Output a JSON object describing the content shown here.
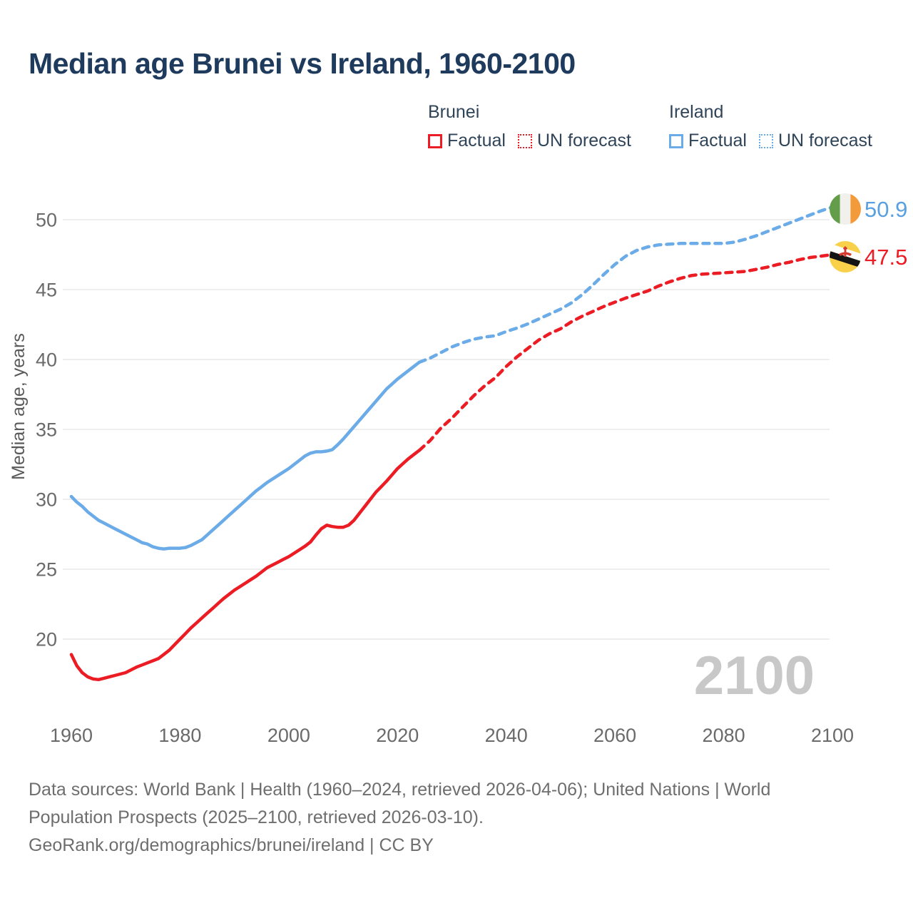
{
  "title": "Median age Brunei vs Ireland, 1960-2100",
  "legend": {
    "brunei_name": "Brunei",
    "ireland_name": "Ireland",
    "factual_label": "Factual",
    "forecast_label": "UN forecast"
  },
  "watermark": "2100",
  "footer": {
    "sources_line": "Data sources: World Bank | Health (1960–2024, retrieved 2026-04-06); United Nations | World Population Prospects (2025–2100, retrieved 2026-03-10).",
    "attribution_line": "GeoRank.org/demographics/brunei/ireland | CC BY"
  },
  "colors": {
    "brunei": "#ec1c24",
    "ireland_line": "#6aabe8",
    "ireland_text": "#59a0e0",
    "title_navy": "#1e3a5c",
    "grid": "#e9e9e9",
    "tick_text": "#6a6a6a",
    "watermark": "#c8c8c8",
    "ireland_flag_green": "#639d49",
    "ireland_flag_orange": "#f39b3a",
    "brunei_flag_yellow": "#f8d04a",
    "brunei_flag_red": "#d6392e"
  },
  "chart_data": {
    "type": "line",
    "title": "Median age Brunei vs Ireland, 1960-2100",
    "xlabel": "",
    "ylabel": "Median age, years",
    "x_ticks": [
      1960,
      1980,
      2000,
      2020,
      2040,
      2060,
      2080,
      2100
    ],
    "y_ticks": [
      20,
      25,
      30,
      35,
      40,
      45,
      50
    ],
    "xlim": [
      1960,
      2100
    ],
    "ylim": [
      16.5,
      52
    ],
    "grid": "horizontal-only",
    "legend_position": "top-right",
    "series": [
      {
        "name": "Ireland Factual",
        "style": "solid",
        "color": "#6aabe8",
        "points": [
          [
            1960,
            30.2
          ],
          [
            1961,
            29.8
          ],
          [
            1962,
            29.5
          ],
          [
            1963,
            29.1
          ],
          [
            1964,
            28.8
          ],
          [
            1965,
            28.5
          ],
          [
            1966,
            28.3
          ],
          [
            1967,
            28.1
          ],
          [
            1968,
            27.9
          ],
          [
            1969,
            27.7
          ],
          [
            1970,
            27.5
          ],
          [
            1971,
            27.3
          ],
          [
            1972,
            27.1
          ],
          [
            1973,
            26.9
          ],
          [
            1974,
            26.8
          ],
          [
            1975,
            26.6
          ],
          [
            1976,
            26.5
          ],
          [
            1977,
            26.45
          ],
          [
            1978,
            26.5
          ],
          [
            1979,
            26.5
          ],
          [
            1980,
            26.5
          ],
          [
            1981,
            26.55
          ],
          [
            1982,
            26.7
          ],
          [
            1983,
            26.9
          ],
          [
            1984,
            27.1
          ],
          [
            1985,
            27.45
          ],
          [
            1986,
            27.8
          ],
          [
            1987,
            28.15
          ],
          [
            1988,
            28.5
          ],
          [
            1989,
            28.85
          ],
          [
            1990,
            29.2
          ],
          [
            1991,
            29.55
          ],
          [
            1992,
            29.9
          ],
          [
            1993,
            30.25
          ],
          [
            1994,
            30.6
          ],
          [
            1995,
            30.9
          ],
          [
            1996,
            31.2
          ],
          [
            1997,
            31.45
          ],
          [
            1998,
            31.7
          ],
          [
            1999,
            31.95
          ],
          [
            2000,
            32.2
          ],
          [
            2001,
            32.5
          ],
          [
            2002,
            32.8
          ],
          [
            2003,
            33.1
          ],
          [
            2004,
            33.3
          ],
          [
            2005,
            33.4
          ],
          [
            2006,
            33.4
          ],
          [
            2007,
            33.45
          ],
          [
            2008,
            33.55
          ],
          [
            2009,
            33.9
          ],
          [
            2010,
            34.3
          ],
          [
            2011,
            34.75
          ],
          [
            2012,
            35.2
          ],
          [
            2013,
            35.65
          ],
          [
            2014,
            36.1
          ],
          [
            2015,
            36.55
          ],
          [
            2016,
            37.0
          ],
          [
            2017,
            37.45
          ],
          [
            2018,
            37.9
          ],
          [
            2019,
            38.25
          ],
          [
            2020,
            38.6
          ],
          [
            2021,
            38.9
          ],
          [
            2022,
            39.2
          ],
          [
            2023,
            39.5
          ],
          [
            2024,
            39.8
          ]
        ]
      },
      {
        "name": "Ireland UN forecast",
        "style": "dashed",
        "color": "#6aabe8",
        "points": [
          [
            2024,
            39.8
          ],
          [
            2026,
            40.1
          ],
          [
            2028,
            40.5
          ],
          [
            2030,
            40.9
          ],
          [
            2032,
            41.2
          ],
          [
            2034,
            41.45
          ],
          [
            2036,
            41.6
          ],
          [
            2038,
            41.7
          ],
          [
            2040,
            42.0
          ],
          [
            2042,
            42.25
          ],
          [
            2044,
            42.55
          ],
          [
            2046,
            42.9
          ],
          [
            2048,
            43.25
          ],
          [
            2050,
            43.6
          ],
          [
            2052,
            44.05
          ],
          [
            2054,
            44.65
          ],
          [
            2056,
            45.35
          ],
          [
            2058,
            46.1
          ],
          [
            2060,
            46.8
          ],
          [
            2062,
            47.4
          ],
          [
            2064,
            47.8
          ],
          [
            2066,
            48.05
          ],
          [
            2068,
            48.2
          ],
          [
            2070,
            48.25
          ],
          [
            2072,
            48.3
          ],
          [
            2074,
            48.3
          ],
          [
            2076,
            48.3
          ],
          [
            2078,
            48.3
          ],
          [
            2080,
            48.3
          ],
          [
            2082,
            48.4
          ],
          [
            2084,
            48.6
          ],
          [
            2086,
            48.85
          ],
          [
            2088,
            49.15
          ],
          [
            2090,
            49.45
          ],
          [
            2092,
            49.75
          ],
          [
            2094,
            50.05
          ],
          [
            2096,
            50.35
          ],
          [
            2098,
            50.65
          ],
          [
            2100,
            50.9
          ]
        ]
      },
      {
        "name": "Brunei Factual",
        "style": "solid",
        "color": "#ec1c24",
        "points": [
          [
            1960,
            18.9
          ],
          [
            1961,
            18.1
          ],
          [
            1962,
            17.6
          ],
          [
            1963,
            17.3
          ],
          [
            1964,
            17.15
          ],
          [
            1965,
            17.1
          ],
          [
            1966,
            17.2
          ],
          [
            1967,
            17.3
          ],
          [
            1968,
            17.4
          ],
          [
            1969,
            17.5
          ],
          [
            1970,
            17.6
          ],
          [
            1971,
            17.8
          ],
          [
            1972,
            18.0
          ],
          [
            1973,
            18.15
          ],
          [
            1974,
            18.3
          ],
          [
            1975,
            18.45
          ],
          [
            1976,
            18.6
          ],
          [
            1977,
            18.9
          ],
          [
            1978,
            19.2
          ],
          [
            1979,
            19.6
          ],
          [
            1980,
            20.0
          ],
          [
            1981,
            20.4
          ],
          [
            1982,
            20.8
          ],
          [
            1983,
            21.15
          ],
          [
            1984,
            21.5
          ],
          [
            1985,
            21.85
          ],
          [
            1986,
            22.2
          ],
          [
            1987,
            22.55
          ],
          [
            1988,
            22.9
          ],
          [
            1989,
            23.2
          ],
          [
            1990,
            23.5
          ],
          [
            1991,
            23.75
          ],
          [
            1992,
            24.0
          ],
          [
            1993,
            24.25
          ],
          [
            1994,
            24.5
          ],
          [
            1995,
            24.8
          ],
          [
            1996,
            25.1
          ],
          [
            1997,
            25.3
          ],
          [
            1998,
            25.5
          ],
          [
            1999,
            25.7
          ],
          [
            2000,
            25.9
          ],
          [
            2001,
            26.15
          ],
          [
            2002,
            26.4
          ],
          [
            2003,
            26.65
          ],
          [
            2004,
            26.95
          ],
          [
            2005,
            27.45
          ],
          [
            2006,
            27.9
          ],
          [
            2007,
            28.15
          ],
          [
            2008,
            28.05
          ],
          [
            2009,
            28.0
          ],
          [
            2010,
            28.0
          ],
          [
            2011,
            28.15
          ],
          [
            2012,
            28.5
          ],
          [
            2013,
            29.0
          ],
          [
            2014,
            29.5
          ],
          [
            2015,
            30.0
          ],
          [
            2016,
            30.5
          ],
          [
            2017,
            30.9
          ],
          [
            2018,
            31.3
          ],
          [
            2019,
            31.75
          ],
          [
            2020,
            32.2
          ],
          [
            2021,
            32.55
          ],
          [
            2022,
            32.9
          ],
          [
            2023,
            33.2
          ],
          [
            2024,
            33.5
          ]
        ]
      },
      {
        "name": "Brunei UN forecast",
        "style": "dashed",
        "color": "#ec1c24",
        "points": [
          [
            2024,
            33.5
          ],
          [
            2026,
            34.2
          ],
          [
            2028,
            35.1
          ],
          [
            2030,
            35.8
          ],
          [
            2032,
            36.6
          ],
          [
            2034,
            37.4
          ],
          [
            2036,
            38.1
          ],
          [
            2038,
            38.7
          ],
          [
            2040,
            39.5
          ],
          [
            2042,
            40.2
          ],
          [
            2044,
            40.8
          ],
          [
            2046,
            41.4
          ],
          [
            2048,
            41.85
          ],
          [
            2050,
            42.2
          ],
          [
            2052,
            42.7
          ],
          [
            2054,
            43.1
          ],
          [
            2056,
            43.45
          ],
          [
            2058,
            43.8
          ],
          [
            2060,
            44.1
          ],
          [
            2062,
            44.4
          ],
          [
            2064,
            44.65
          ],
          [
            2066,
            44.9
          ],
          [
            2068,
            45.25
          ],
          [
            2070,
            45.55
          ],
          [
            2072,
            45.8
          ],
          [
            2074,
            46.0
          ],
          [
            2076,
            46.1
          ],
          [
            2078,
            46.15
          ],
          [
            2080,
            46.2
          ],
          [
            2082,
            46.25
          ],
          [
            2084,
            46.3
          ],
          [
            2086,
            46.45
          ],
          [
            2088,
            46.6
          ],
          [
            2090,
            46.8
          ],
          [
            2092,
            46.95
          ],
          [
            2094,
            47.15
          ],
          [
            2096,
            47.3
          ],
          [
            2098,
            47.4
          ],
          [
            2100,
            47.5
          ]
        ]
      }
    ],
    "end_labels": [
      {
        "series": "Ireland",
        "value": "50.9",
        "flag": "ireland"
      },
      {
        "series": "Brunei",
        "value": "47.5",
        "flag": "brunei"
      }
    ]
  }
}
